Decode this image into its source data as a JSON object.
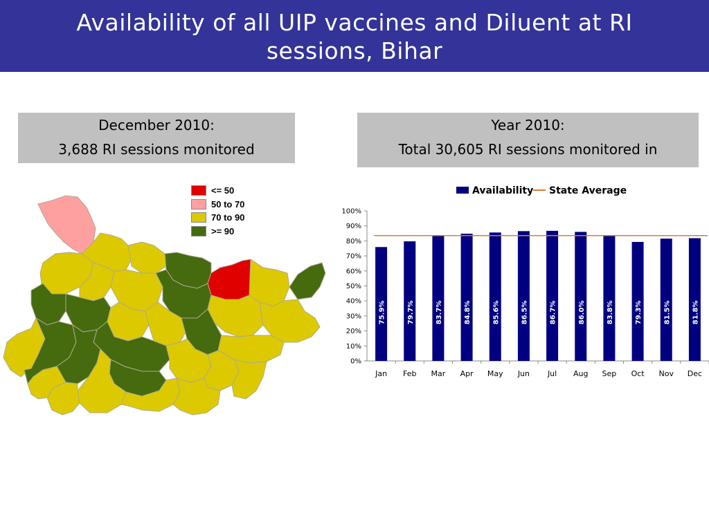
{
  "slide": {
    "title_line1": "Availability of all UIP vaccines and Diluent at RI",
    "title_line2": "sessions, Bihar"
  },
  "left_box": {
    "line1": "December 2010:",
    "line2": "3,688 RI sessions monitored"
  },
  "right_box": {
    "line1": "Year 2010:",
    "line2": "Total 30,605 RI sessions monitored in"
  },
  "map_legend": [
    {
      "label": "<= 50",
      "color": "#e00000"
    },
    {
      "label": "50 to 70",
      "color": "#ffa0a0"
    },
    {
      "label": "70 to 90",
      "color": "#ddc900"
    },
    {
      "label": ">= 90",
      "color": "#456b0e"
    }
  ],
  "map_colors": {
    "yellow": "#ddc900",
    "green": "#456b0e",
    "red": "#e00000",
    "pink": "#ffa0a0",
    "border": "#b0a890"
  },
  "chart_data": {
    "type": "bar",
    "categories": [
      "Jan",
      "Feb",
      "Mar",
      "Apr",
      "May",
      "Jun",
      "Jul",
      "Aug",
      "Sep",
      "Oct",
      "Nov",
      "Dec"
    ],
    "series": [
      {
        "name": "Availability",
        "type": "bar",
        "color": "#000080",
        "values": [
          75.9,
          79.7,
          83.7,
          84.8,
          85.6,
          86.5,
          86.7,
          86.0,
          83.8,
          79.3,
          81.5,
          81.8
        ],
        "data_labels": [
          "75.9%",
          "79.7%",
          "83.7%",
          "84.8%",
          "85.6%",
          "86.5%",
          "86.7%",
          "86.0%",
          "83.8%",
          "79.3%",
          "81.5%",
          "81.8%"
        ]
      },
      {
        "name": "State Average",
        "type": "line",
        "color": "#e07a30",
        "value": 83.5
      }
    ],
    "y_ticks": [
      "0%",
      "10%",
      "20%",
      "30%",
      "40%",
      "50%",
      "60%",
      "70%",
      "80%",
      "90%",
      "100%"
    ],
    "ylim": [
      0,
      100
    ],
    "legend_position": "top",
    "grid": false
  }
}
